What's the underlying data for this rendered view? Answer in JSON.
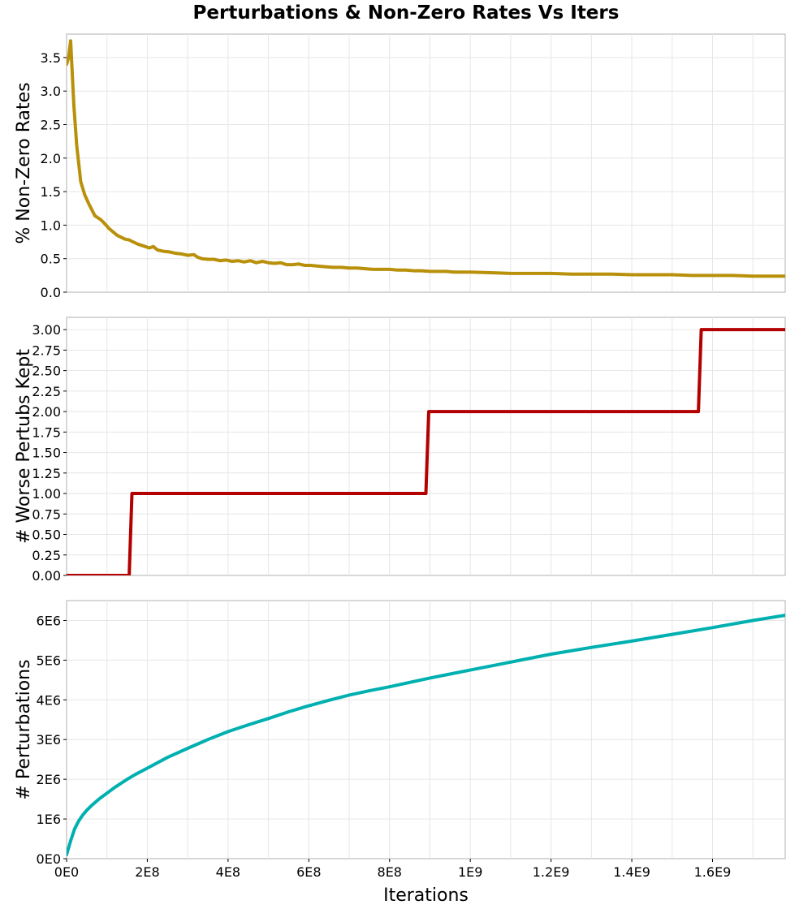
{
  "title": "Perturbations & Non-Zero Rates Vs Iters",
  "chart_data": [
    {
      "type": "line",
      "ylabel": "% Non-Zero Rates",
      "color": "#b8900a",
      "xlim": [
        0,
        1780000000
      ],
      "ylim": [
        0,
        3.85
      ],
      "yticks": [
        {
          "value": 0,
          "label": "0.0"
        },
        {
          "value": 0.5,
          "label": "0.5"
        },
        {
          "value": 1.0,
          "label": "1.0"
        },
        {
          "value": 1.5,
          "label": "1.5"
        },
        {
          "value": 2.0,
          "label": "2.0"
        },
        {
          "value": 2.5,
          "label": "2.5"
        },
        {
          "value": 3.0,
          "label": "3.0"
        },
        {
          "value": 3.5,
          "label": "3.5"
        }
      ],
      "grid": true,
      "series": [
        {
          "x": [
            0,
            5000000,
            10000000,
            18000000,
            25000000,
            35000000,
            45000000,
            55000000,
            70000000,
            85000000,
            95000000,
            105000000,
            115000000,
            125000000,
            135000000,
            145000000,
            155000000,
            165000000,
            175000000,
            185000000,
            195000000,
            205000000,
            215000000,
            225000000,
            240000000,
            255000000,
            270000000,
            285000000,
            300000000,
            315000000,
            325000000,
            335000000,
            350000000,
            365000000,
            380000000,
            395000000,
            410000000,
            425000000,
            440000000,
            455000000,
            470000000,
            485000000,
            500000000,
            515000000,
            530000000,
            545000000,
            560000000,
            575000000,
            590000000,
            605000000,
            620000000,
            640000000,
            660000000,
            680000000,
            700000000,
            720000000,
            740000000,
            760000000,
            780000000,
            800000000,
            820000000,
            840000000,
            860000000,
            880000000,
            900000000,
            920000000,
            940000000,
            960000000,
            980000000,
            1000000000,
            1050000000,
            1100000000,
            1150000000,
            1200000000,
            1250000000,
            1300000000,
            1350000000,
            1400000000,
            1450000000,
            1500000000,
            1550000000,
            1600000000,
            1650000000,
            1700000000,
            1750000000,
            1780000000
          ],
          "values": [
            3.4,
            3.5,
            3.75,
            2.8,
            2.2,
            1.65,
            1.45,
            1.32,
            1.14,
            1.08,
            1.02,
            0.95,
            0.9,
            0.85,
            0.82,
            0.79,
            0.78,
            0.75,
            0.72,
            0.7,
            0.68,
            0.66,
            0.68,
            0.63,
            0.61,
            0.6,
            0.58,
            0.57,
            0.55,
            0.56,
            0.52,
            0.5,
            0.49,
            0.49,
            0.47,
            0.48,
            0.46,
            0.47,
            0.45,
            0.47,
            0.44,
            0.46,
            0.44,
            0.43,
            0.44,
            0.41,
            0.41,
            0.42,
            0.4,
            0.4,
            0.39,
            0.38,
            0.37,
            0.37,
            0.36,
            0.36,
            0.35,
            0.34,
            0.34,
            0.34,
            0.33,
            0.33,
            0.32,
            0.32,
            0.31,
            0.31,
            0.31,
            0.3,
            0.3,
            0.3,
            0.29,
            0.28,
            0.28,
            0.28,
            0.27,
            0.27,
            0.27,
            0.26,
            0.26,
            0.26,
            0.25,
            0.25,
            0.25,
            0.24,
            0.24,
            0.24
          ]
        }
      ]
    },
    {
      "type": "line",
      "ylabel": "# Worse Pertubs Kept",
      "color": "#b30000",
      "xlim": [
        0,
        1780000000
      ],
      "ylim": [
        0,
        3.15
      ],
      "yticks": [
        {
          "value": 0,
          "label": "0.00"
        },
        {
          "value": 0.25,
          "label": "0.25"
        },
        {
          "value": 0.5,
          "label": "0.50"
        },
        {
          "value": 0.75,
          "label": "0.75"
        },
        {
          "value": 1.0,
          "label": "1.00"
        },
        {
          "value": 1.25,
          "label": "1.25"
        },
        {
          "value": 1.5,
          "label": "1.50"
        },
        {
          "value": 1.75,
          "label": "1.75"
        },
        {
          "value": 2.0,
          "label": "2.00"
        },
        {
          "value": 2.25,
          "label": "2.25"
        },
        {
          "value": 2.5,
          "label": "2.50"
        },
        {
          "value": 2.75,
          "label": "2.75"
        },
        {
          "value": 3.0,
          "label": "3.00"
        }
      ],
      "grid": true,
      "series": [
        {
          "x": [
            0,
            155000000,
            162000000,
            890000000,
            897000000,
            1565000000,
            1572000000,
            1780000000
          ],
          "values": [
            0,
            0,
            1,
            1,
            2,
            2,
            3,
            3
          ]
        }
      ]
    },
    {
      "type": "line",
      "ylabel": "# Perturbations",
      "xlabel": "Iterations",
      "color": "#00b0b0",
      "xlim": [
        0,
        1780000000
      ],
      "ylim": [
        0,
        6500000
      ],
      "yticks": [
        {
          "value": 0,
          "label": "0E0"
        },
        {
          "value": 1000000,
          "label": "1E6"
        },
        {
          "value": 2000000,
          "label": "2E6"
        },
        {
          "value": 3000000,
          "label": "3E6"
        },
        {
          "value": 4000000,
          "label": "4E6"
        },
        {
          "value": 5000000,
          "label": "5E6"
        },
        {
          "value": 6000000,
          "label": "6E6"
        }
      ],
      "xticks": [
        {
          "value": 0,
          "label": "0E0"
        },
        {
          "value": 200000000,
          "label": "2E8"
        },
        {
          "value": 400000000,
          "label": "4E8"
        },
        {
          "value": 600000000,
          "label": "6E8"
        },
        {
          "value": 800000000,
          "label": "8E8"
        },
        {
          "value": 1000000000,
          "label": "1E9"
        },
        {
          "value": 1200000000,
          "label": "1.2E9"
        },
        {
          "value": 1400000000,
          "label": "1.4E9"
        },
        {
          "value": 1600000000,
          "label": "1.6E9"
        }
      ],
      "grid": true,
      "series": [
        {
          "x": [
            0,
            10000000,
            20000000,
            30000000,
            40000000,
            50000000,
            60000000,
            80000000,
            100000000,
            120000000,
            150000000,
            170000000,
            200000000,
            250000000,
            300000000,
            350000000,
            400000000,
            450000000,
            500000000,
            550000000,
            600000000,
            650000000,
            700000000,
            750000000,
            800000000,
            850000000,
            900000000,
            950000000,
            1000000000,
            1100000000,
            1200000000,
            1300000000,
            1400000000,
            1500000000,
            1600000000,
            1700000000,
            1780000000
          ],
          "values": [
            100000,
            450000,
            750000,
            950000,
            1100000,
            1220000,
            1320000,
            1500000,
            1650000,
            1800000,
            2000000,
            2120000,
            2280000,
            2550000,
            2780000,
            3000000,
            3200000,
            3370000,
            3530000,
            3700000,
            3850000,
            3990000,
            4120000,
            4230000,
            4330000,
            4440000,
            4550000,
            4650000,
            4750000,
            4950000,
            5150000,
            5320000,
            5480000,
            5650000,
            5820000,
            6000000,
            6130000
          ]
        }
      ]
    }
  ]
}
